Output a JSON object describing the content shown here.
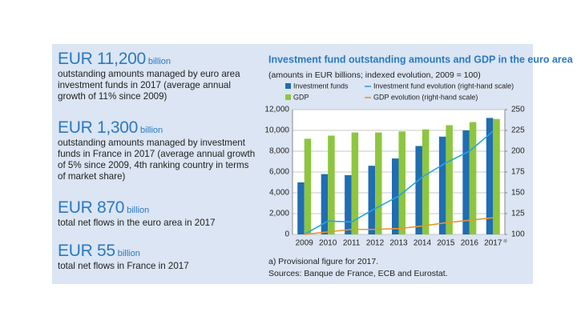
{
  "stats": [
    {
      "amount": "EUR 11,200",
      "unit": "billion",
      "text": "outstanding amounts managed by euro area investment funds in 2017 (average annual growth of 11% since 2009)"
    },
    {
      "amount": "EUR 1,300",
      "unit": "billion",
      "text": "outstanding amounts managed by investment funds in France in 2017 (average annual growth of 5% since 2009, 4th ranking country in terms of market share)"
    },
    {
      "amount": "EUR 870",
      "unit": "billion",
      "text": "total net flows in the euro area in 2017"
    },
    {
      "amount": "EUR 55",
      "unit": "billion",
      "text": "total net flows in France in 2017"
    }
  ],
  "chart_data": {
    "type": "bar",
    "title": "Investment fund outstanding amounts and GDP in the euro area",
    "subtitle": "(amounts in EUR billions; indexed evolution, 2009 = 100)",
    "categories": [
      "2009",
      "2010",
      "2011",
      "2012",
      "2013",
      "2014",
      "2015",
      "2016",
      "2017"
    ],
    "category_marker": "a)",
    "series": [
      {
        "name": "Investment funds",
        "type": "bar",
        "color": "#1f6db3",
        "values": [
          5000,
          5800,
          5700,
          6600,
          7300,
          8500,
          9400,
          10000,
          11200
        ]
      },
      {
        "name": "GDP",
        "type": "bar",
        "color": "#8dc63f",
        "values": [
          9200,
          9500,
          9800,
          9800,
          9900,
          10100,
          10500,
          10800,
          11100
        ]
      },
      {
        "name": "Investment fund evolution (right-hand scale)",
        "type": "line",
        "axis": "y2",
        "color": "#2aa3dc",
        "values": [
          100,
          116,
          115,
          131,
          146,
          169,
          186,
          200,
          224
        ]
      },
      {
        "name": "GDP evolution (right-hand scale)",
        "type": "line",
        "axis": "y2",
        "color": "#e8962e",
        "values": [
          100,
          103,
          106,
          106,
          107,
          110,
          114,
          117,
          120
        ]
      }
    ],
    "ylim": [
      0,
      12000
    ],
    "yticks": [
      0,
      {
        "value": 2000,
        "label": "2,000"
      },
      {
        "value": 4000,
        "label": "4,000"
      },
      {
        "value": 6000,
        "label": "6,000"
      },
      {
        "value": 8000,
        "label": "8,000"
      },
      {
        "value": 10000,
        "label": "10,000"
      },
      {
        "value": 12000,
        "label": "12,000"
      }
    ],
    "y2lim": [
      100,
      250
    ],
    "y2ticks": [
      100,
      125,
      150,
      175,
      200,
      225,
      250
    ],
    "grid": true,
    "notes": [
      "a) Provisional figure for 2017.",
      "Sources: Banque de France, ECB and Eurostat."
    ]
  }
}
